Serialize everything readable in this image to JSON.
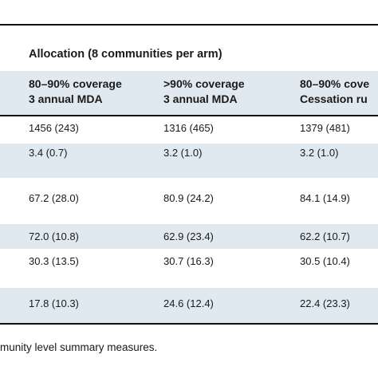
{
  "allocation_label": "Allocation (8 communities per arm)",
  "columns": [
    {
      "line1": "80–90% coverage",
      "line2": "3 annual MDA"
    },
    {
      "line1": ">90% coverage",
      "line2": "3 annual MDA"
    },
    {
      "line1": "80–90% cove",
      "line2": "Cessation ru"
    }
  ],
  "rows": [
    [
      "1456 (243)",
      "1316 (465)",
      "1379 (481)"
    ],
    [
      "3.4 (0.7)",
      "3.2 (1.0)",
      "3.2 (1.0)"
    ],
    [
      "67.2 (28.0)",
      "80.9 (24.2)",
      "84.1 (14.9)"
    ],
    [
      "72.0 (10.8)",
      "62.9 (23.4)",
      "62.2 (10.7)"
    ],
    [
      "30.3 (13.5)",
      "30.7 (16.3)",
      "30.5 (10.4)"
    ],
    [
      "17.8 (10.3)",
      "24.6 (12.4)",
      "22.4 (23.3)"
    ]
  ],
  "footnote": "munity level summary measures.",
  "colors": {
    "band": "#dfe9ef",
    "rule": "#111111"
  }
}
